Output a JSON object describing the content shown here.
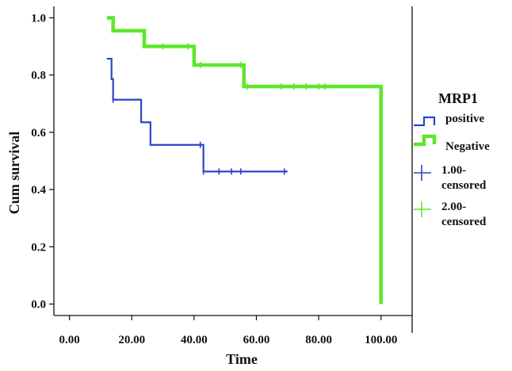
{
  "chart_data": {
    "type": "line",
    "title": "",
    "xlabel": "Time",
    "ylabel": "Cum survival",
    "xlim": [
      -5,
      110
    ],
    "ylim": [
      -0.04,
      1.04
    ],
    "x_ticks": [
      0,
      20,
      40,
      60,
      80,
      100
    ],
    "x_tick_labels": [
      "0.00",
      "20.00",
      "40.00",
      "60.00",
      "80.00",
      "100.00"
    ],
    "y_ticks": [
      0.0,
      0.2,
      0.4,
      0.6,
      0.8,
      1.0
    ],
    "y_tick_labels": [
      "0.0",
      "0.2",
      "0.4",
      "0.6",
      "0.8",
      "1.0"
    ],
    "grid": false,
    "legend_title": "MRP1",
    "legend_position": "right",
    "series": [
      {
        "name": "positive",
        "color": "#2a46c8",
        "steps": [
          [
            12,
            0.857
          ],
          [
            13.5,
            0.786
          ],
          [
            14,
            0.714
          ],
          [
            23,
            0.635
          ],
          [
            26,
            0.556
          ],
          [
            43,
            0.463
          ],
          [
            70,
            0.463
          ]
        ],
        "censored": [
          14,
          42,
          43,
          48,
          52,
          55,
          69
        ]
      },
      {
        "name": "Negative",
        "color": "#5ee62a",
        "steps": [
          [
            12,
            1.0
          ],
          [
            14,
            0.955
          ],
          [
            24,
            0.9
          ],
          [
            40,
            0.835
          ],
          [
            56,
            0.76
          ],
          [
            100,
            0.0
          ]
        ],
        "censored": [
          30,
          38,
          42,
          55,
          57,
          68,
          72,
          76,
          80,
          82
        ]
      }
    ],
    "censored_legend": [
      {
        "label_line1": "1.00-",
        "label_line2": "censored",
        "color": "#2a46c8"
      },
      {
        "label_line1": "2.00-",
        "label_line2": "censored",
        "color": "#5ee62a"
      }
    ]
  }
}
